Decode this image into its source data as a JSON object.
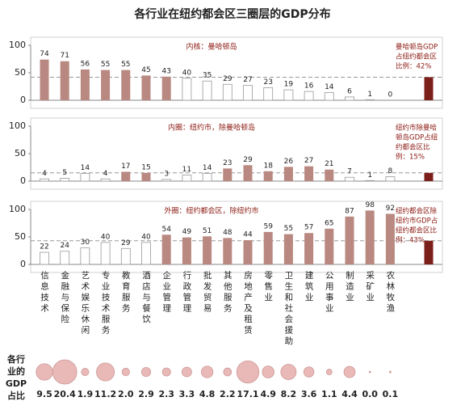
{
  "chart_data": [
    {
      "type": "bar",
      "title": "内核：曼哈顿岛",
      "values": [
        74,
        71,
        56,
        55,
        55,
        45,
        43,
        40,
        35,
        29,
        27,
        23,
        19,
        16,
        14,
        6,
        1,
        0
      ],
      "fills": [
        "#b98880",
        "#b98880",
        "#b98880",
        "#b98880",
        "#b98880",
        "#b98880",
        "#b98880",
        "#ffffff",
        "#ffffff",
        "#ffffff",
        "#ffffff",
        "#ffffff",
        "#ffffff",
        "#ffffff",
        "#ffffff",
        "#ffffff",
        "#ffffff",
        "#ffffff"
      ],
      "total": 42,
      "total_color": "#7b1f1a",
      "annotation": [
        "曼哈顿岛GDP",
        "占纽约都会区",
        "比例：42%"
      ],
      "ylim": [
        0,
        100
      ],
      "yticks": [
        0,
        50,
        100
      ]
    },
    {
      "type": "bar",
      "title": "内圈：纽约市，除曼哈顿岛",
      "values": [
        4,
        5,
        14,
        4,
        17,
        15,
        3,
        11,
        14,
        23,
        29,
        18,
        26,
        27,
        21,
        7,
        1,
        8
      ],
      "fills": [
        "#ffffff",
        "#ffffff",
        "#ffffff",
        "#ffffff",
        "#b98880",
        "#b98880",
        "#ffffff",
        "#ffffff",
        "#ffffff",
        "#b98880",
        "#b98880",
        "#b98880",
        "#b98880",
        "#b98880",
        "#b98880",
        "#ffffff",
        "#ffffff",
        "#ffffff"
      ],
      "total": 15,
      "total_color": "#7b1f1a",
      "annotation": [
        "纽约市除曼哈",
        "顿岛GDP占纽",
        "约都会区比",
        "例：15%"
      ],
      "ylim": [
        0,
        100
      ],
      "yticks": [
        0,
        50,
        100
      ]
    },
    {
      "type": "bar",
      "title": "外圈：纽约都会区，除纽约市",
      "categories": [
        "信息技术",
        "金融与保险",
        "艺术娱乐休闲",
        "专业技术服务",
        "教育服务",
        "酒店与餐饮",
        "企业管理",
        "行政管理",
        "批发贸易",
        "其他服务",
        "房地产及租赁",
        "零售业",
        "卫生和社会援助",
        "建筑业",
        "公用事业",
        "制造业",
        "采矿业",
        "农林牧渔"
      ],
      "values": [
        22,
        24,
        30,
        40,
        29,
        40,
        54,
        49,
        51,
        48,
        44,
        59,
        55,
        57,
        65,
        87,
        98,
        92
      ],
      "fills": [
        "#ffffff",
        "#ffffff",
        "#ffffff",
        "#ffffff",
        "#ffffff",
        "#ffffff",
        "#b98880",
        "#b98880",
        "#b98880",
        "#b98880",
        "#b98880",
        "#b98880",
        "#b98880",
        "#b98880",
        "#b98880",
        "#b98880",
        "#b98880",
        "#b98880"
      ],
      "total": 43,
      "total_color": "#7b1f1a",
      "annotation": [
        "纽约都会区除",
        "纽约市GDP占",
        "纽约都会区比",
        "例：43%"
      ],
      "ylim": [
        0,
        100
      ],
      "yticks": [
        0,
        50,
        100
      ]
    },
    {
      "type": "bubble",
      "title": "各行业的GDP占比",
      "color": "#e9b9b7",
      "values": [
        9.5,
        20.4,
        1.9,
        11.2,
        2.0,
        2.9,
        2.3,
        3.3,
        4.8,
        2.2,
        17.1,
        4.9,
        8.2,
        3.6,
        1.1,
        4.4,
        0.0,
        0.1
      ],
      "value_labels": [
        "9.5",
        "20.4",
        "1.9",
        "11.2",
        "2.0",
        "2.9",
        "2.3",
        "3.3",
        "4.8",
        "2.2",
        "17.1",
        "4.9",
        "8.2",
        "3.6",
        "1.1",
        "4.4",
        "0.0",
        "0.1"
      ]
    }
  ],
  "title": "各行业在纽约都会区三圈层的GDP分布"
}
